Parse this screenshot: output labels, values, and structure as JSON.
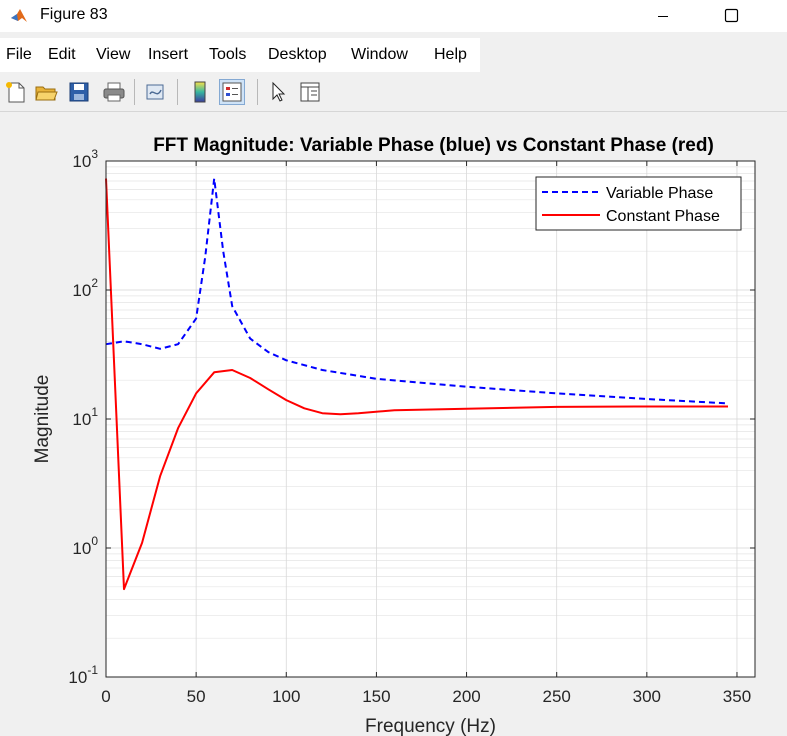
{
  "window": {
    "title": "Figure 83",
    "colors": {
      "titlebar": "#ffffff",
      "figure_bg": "#f0f0f0"
    }
  },
  "menu": {
    "items": [
      "File",
      "Edit",
      "View",
      "Insert",
      "Tools",
      "Desktop",
      "Window",
      "Help"
    ]
  },
  "toolbar": {
    "buttons": [
      "new-figure-icon",
      "open-file-icon",
      "save-icon",
      "print-icon",
      "link-plot-icon",
      "colorbar-icon",
      "legend-icon",
      "pointer-icon",
      "property-editor-icon"
    ]
  },
  "chart_data": {
    "type": "line",
    "title": "FFT Magnitude: Variable Phase (blue) vs Constant Phase (red)",
    "xlabel": "Frequency (Hz)",
    "ylabel": "Magnitude",
    "xlim": [
      0,
      360
    ],
    "ylim": [
      0.1,
      1000
    ],
    "yscale": "log",
    "grid": true,
    "xticks": [
      "0",
      "50",
      "100",
      "150",
      "200",
      "250",
      "300",
      "350"
    ],
    "yticks": [
      {
        "base": "10",
        "exp": "-1"
      },
      {
        "base": "10",
        "exp": "0"
      },
      {
        "base": "10",
        "exp": "1"
      },
      {
        "base": "10",
        "exp": "2"
      },
      {
        "base": "10",
        "exp": "3"
      }
    ],
    "legend_position": "top-right",
    "series": [
      {
        "name": "Variable Phase",
        "color": "#0000ff",
        "style": "dashed",
        "x": [
          0,
          10,
          20,
          30,
          40,
          50,
          55,
          60,
          65,
          70,
          80,
          90,
          100,
          120,
          150,
          200,
          250,
          300,
          345
        ],
        "y": [
          38,
          40,
          38,
          35,
          38,
          60,
          180,
          730,
          200,
          75,
          42,
          33,
          28.5,
          24,
          20.5,
          17.8,
          15.8,
          14.3,
          13.2
        ]
      },
      {
        "name": "Constant Phase",
        "color": "#ff0000",
        "style": "solid",
        "x": [
          0,
          10,
          20,
          30,
          40,
          50,
          60,
          70,
          80,
          90,
          100,
          110,
          120,
          130,
          140,
          160,
          200,
          250,
          300,
          345
        ],
        "y": [
          730,
          0.48,
          1.1,
          3.6,
          8.5,
          15.8,
          23,
          24,
          20.8,
          17,
          14,
          12.1,
          11.1,
          10.9,
          11.1,
          11.7,
          12,
          12.4,
          12.5,
          12.5
        ]
      }
    ]
  }
}
